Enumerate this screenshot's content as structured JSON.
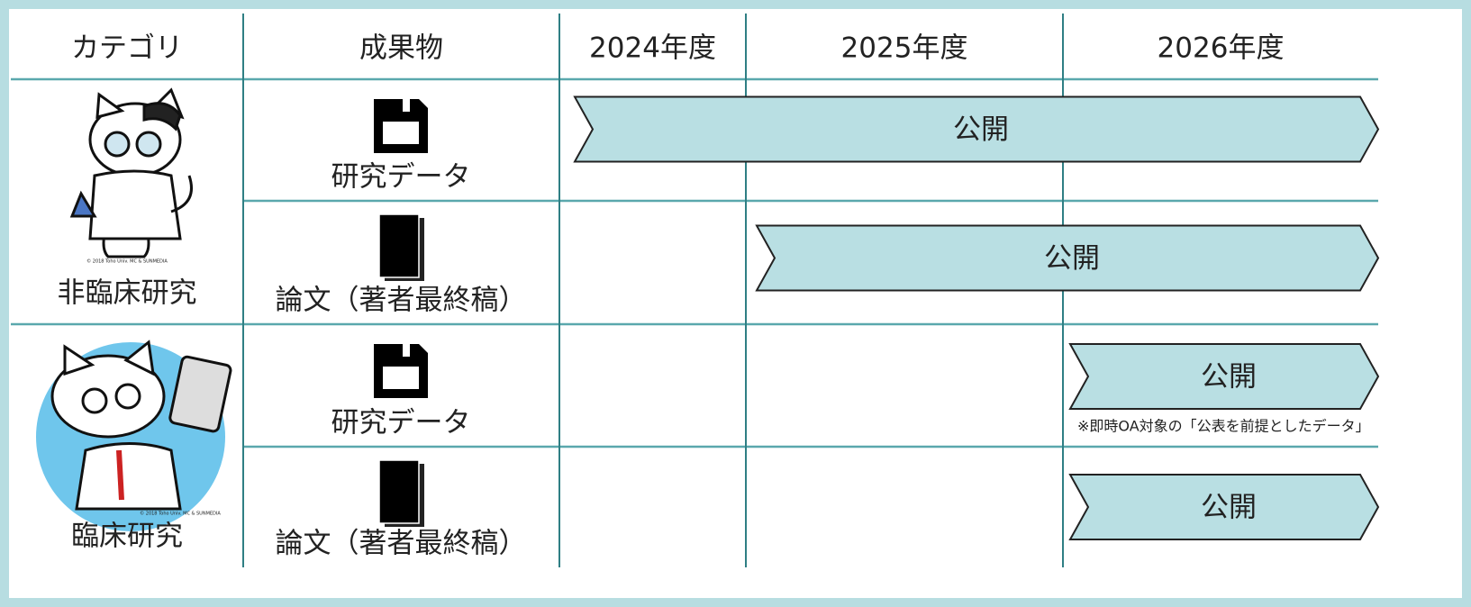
{
  "header": {
    "columns": [
      "カテゴリ",
      "成果物",
      "2024年度",
      "2025年度",
      "2026年度"
    ]
  },
  "groups": [
    {
      "label": "非臨床研究",
      "credit": "© 2018 Toho Univ. MC & SUNMEDIA",
      "items": [
        {
          "label": "研究データ",
          "bar": "公開"
        },
        {
          "label": "論文（著者最終稿）",
          "bar": "公開"
        }
      ]
    },
    {
      "label": "臨床研究",
      "credit": "© 2018 Toho Univ. MC & SUNMEDIA",
      "items": [
        {
          "label": "研究データ",
          "bar": "公開",
          "note": "※即時OA対象の「公表を前提としたデータ」"
        },
        {
          "label": "論文（著者最終稿）",
          "bar": "公開"
        }
      ]
    }
  ]
}
